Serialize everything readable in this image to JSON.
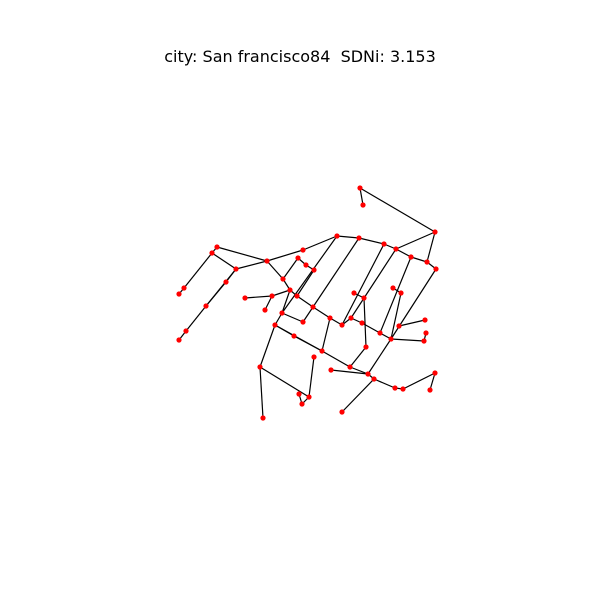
{
  "title": "city: San francisco84  SDNi: 3.153",
  "colors": {
    "node": "#ff0000",
    "edge": "#000000",
    "background": "#ffffff"
  }
}
